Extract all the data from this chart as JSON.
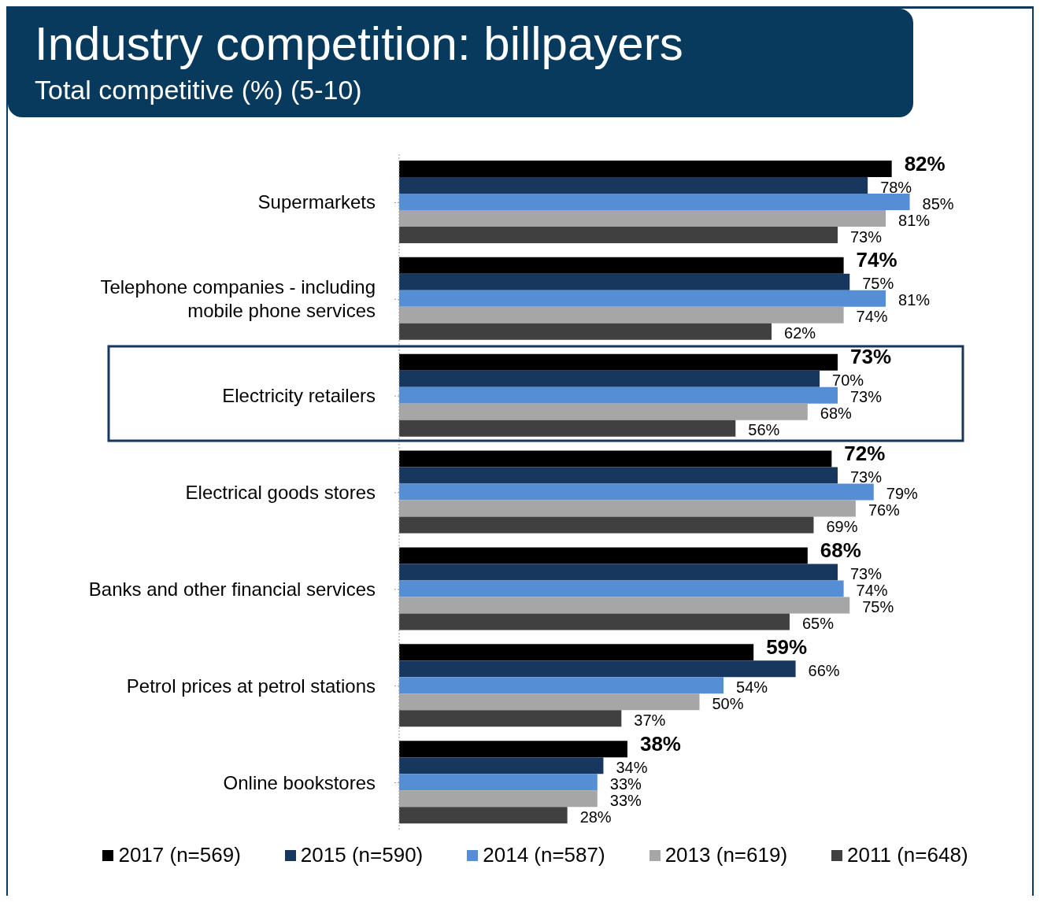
{
  "chart_data": {
    "type": "bar",
    "orientation": "horizontal",
    "title": "Industry competition: billpayers",
    "subtitle": "Total competitive (%) (5-10)",
    "categories": [
      "Supermarkets",
      "Telephone companies - including mobile phone services",
      "Electricity retailers",
      "Electrical goods stores",
      "Banks and other financial services",
      "Petrol prices at petrol stations",
      "Online bookstores"
    ],
    "series": [
      {
        "name": "2017 (n=569)",
        "color": "#000000",
        "values": [
          82,
          74,
          73,
          72,
          68,
          59,
          38
        ],
        "value_labels": [
          "82%",
          "74%",
          "73%",
          "72%",
          "68%",
          "59%",
          "38%"
        ]
      },
      {
        "name": "2015 (n=590)",
        "color": "#17375e",
        "values": [
          78,
          75,
          70,
          73,
          73,
          66,
          34
        ],
        "value_labels": [
          "78%",
          "75%",
          "70%",
          "73%",
          "73%",
          "66%",
          "34%"
        ]
      },
      {
        "name": "2014 (n=587)",
        "color": "#558ed5",
        "values": [
          85,
          81,
          73,
          79,
          74,
          54,
          33
        ],
        "value_labels": [
          "85%",
          "81%",
          "73%",
          "79%",
          "74%",
          "54%",
          "33%"
        ]
      },
      {
        "name": "2013 (n=619)",
        "color": "#a6a6a6",
        "values": [
          81,
          74,
          68,
          76,
          75,
          50,
          33
        ],
        "value_labels": [
          "81%",
          "74%",
          "68%",
          "76%",
          "75%",
          "50%",
          "33%"
        ]
      },
      {
        "name": "2011 (n=648)",
        "color": "#404040",
        "values": [
          73,
          62,
          56,
          69,
          65,
          37,
          28
        ],
        "value_labels": [
          "73%",
          "62%",
          "56%",
          "69%",
          "65%",
          "37%",
          "28%"
        ]
      }
    ],
    "tick_labels": "y",
    "grid": false,
    "legend": "bottom"
  }
}
